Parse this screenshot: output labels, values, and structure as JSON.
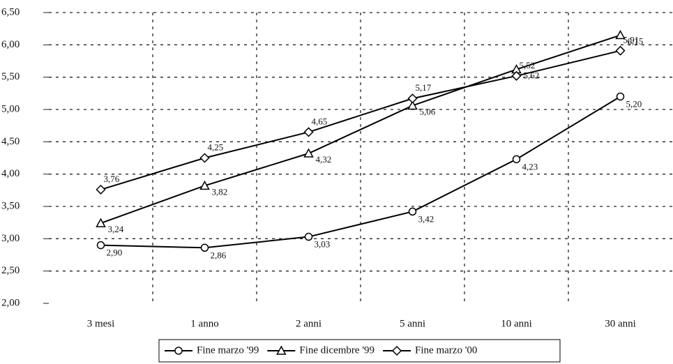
{
  "chart_data": {
    "type": "line",
    "categories": [
      "3 mesi",
      "1 anno",
      "2 anni",
      "5 anni",
      "10 anni",
      "30 anni"
    ],
    "series": [
      {
        "name": "Fine marzo '99",
        "color": "#000000",
        "marker": "circle",
        "values": [
          2.9,
          2.86,
          3.03,
          3.42,
          4.23,
          5.2
        ],
        "value_labels": [
          "2,90",
          "2,86",
          "3,03",
          "3,42",
          "4,23",
          "5,20"
        ]
      },
      {
        "name": "Fine dicembre '99",
        "color": "#000000",
        "marker": "triangle",
        "values": [
          3.24,
          3.82,
          4.32,
          5.06,
          5.62,
          6.15
        ],
        "value_labels": [
          "3,24",
          "3,82",
          "4,32",
          "5,06",
          "5,62",
          "6,15"
        ]
      },
      {
        "name": "Fine marzo '00",
        "color": "#000000",
        "marker": "diamond",
        "values": [
          3.76,
          4.25,
          4.65,
          5.17,
          5.52,
          5.91
        ],
        "value_labels": [
          "3,76",
          "4,25",
          "4,65",
          "5,17",
          "5,52",
          "5,91"
        ]
      }
    ],
    "ylim": [
      2.0,
      6.5
    ],
    "yticks": [
      {
        "value": 2.0,
        "label": "2,00"
      },
      {
        "value": 2.5,
        "label": "2,50"
      },
      {
        "value": 3.0,
        "label": "3,00"
      },
      {
        "value": 3.5,
        "label": "3,50"
      },
      {
        "value": 4.0,
        "label": "4,00"
      },
      {
        "value": 4.5,
        "label": "4,50"
      },
      {
        "value": 5.0,
        "label": "5,00"
      },
      {
        "value": 5.5,
        "label": "5,50"
      },
      {
        "value": 6.0,
        "label": "6,00"
      },
      {
        "value": 6.5,
        "label": "6,50"
      }
    ],
    "grid": true,
    "legend": "bottom"
  }
}
